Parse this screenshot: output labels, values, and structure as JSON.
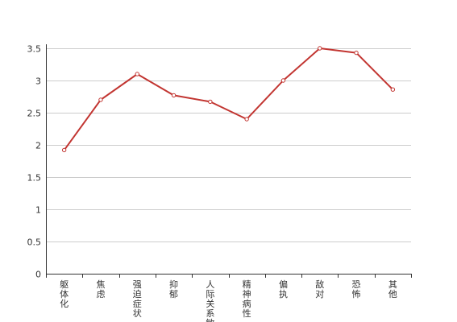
{
  "chart_data": {
    "type": "line",
    "categories": [
      "躯体化",
      "焦虑",
      "强迫症状",
      "抑郁",
      "人际关系敏感",
      "精神病性",
      "偏执",
      "敌对",
      "恐怖",
      "其他"
    ],
    "series": [
      {
        "values": [
          1.92,
          2.7,
          3.1,
          2.77,
          2.67,
          2.4,
          3.0,
          3.5,
          3.43,
          2.86
        ]
      }
    ],
    "ylim": [
      0,
      3.5
    ],
    "yticks": [
      "0",
      "0.5",
      "1",
      "1.5",
      "2",
      "2.5",
      "3",
      "3.5"
    ],
    "grid": true,
    "line_color": "#c23531",
    "title": "",
    "xlabel": "",
    "ylabel": ""
  }
}
